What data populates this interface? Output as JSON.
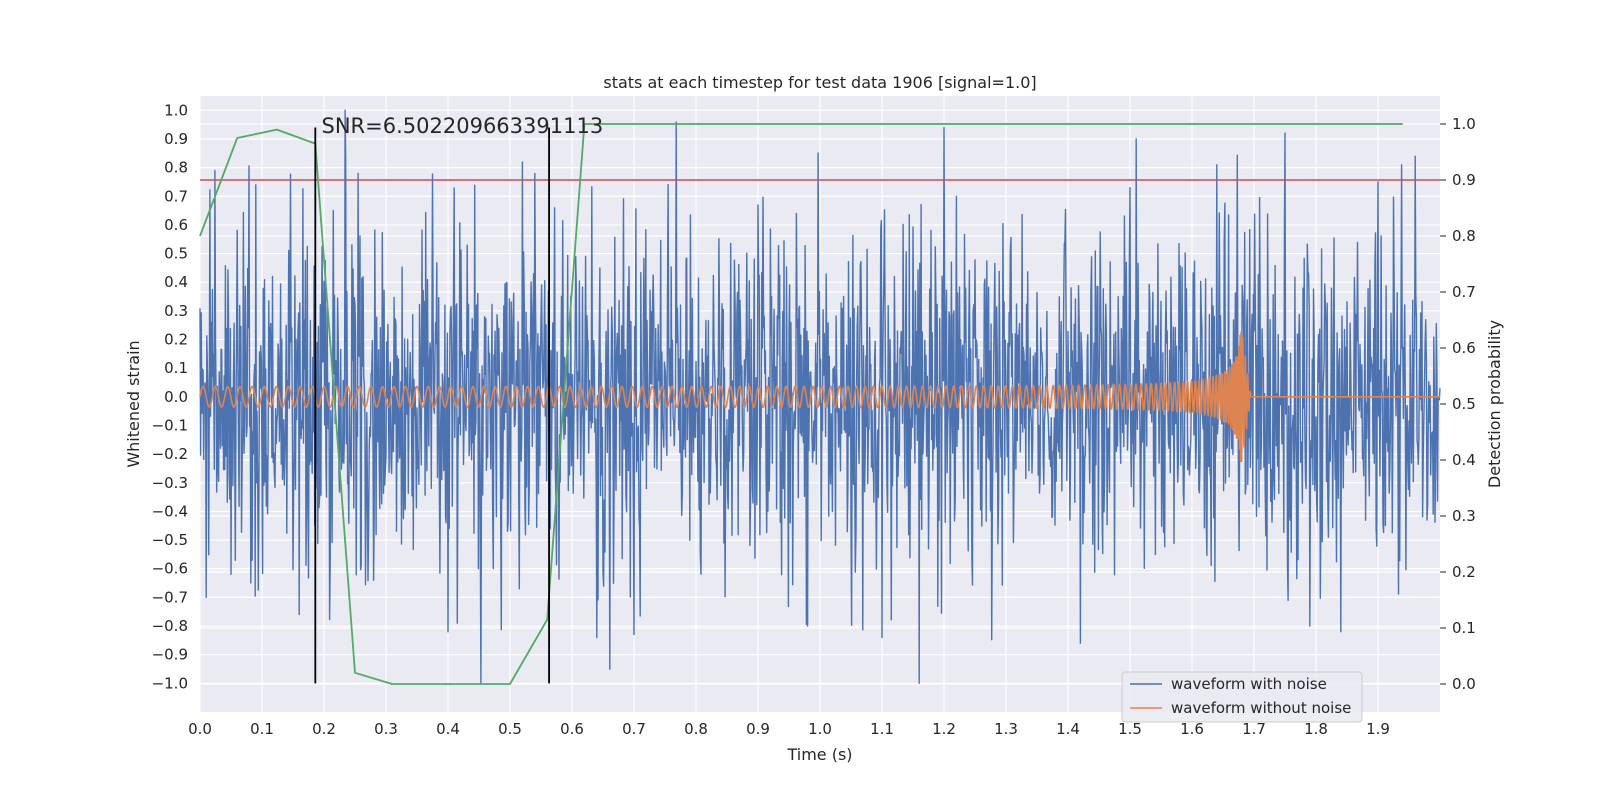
{
  "chart_data": {
    "type": "line",
    "title": "stats at each timestep for test data 1906 [signal=1.0]",
    "xlabel": "Time (s)",
    "ylabel": "Whitened strain",
    "y2label": "Detection probability",
    "xlim": [
      0.0,
      2.0
    ],
    "ylim": [
      -1.1,
      1.05
    ],
    "y2lim": [
      -0.05,
      1.05
    ],
    "x_ticks": [
      0.0,
      0.1,
      0.2,
      0.3,
      0.4,
      0.5,
      0.6,
      0.7,
      0.8,
      0.9,
      1.0,
      1.1,
      1.2,
      1.3,
      1.4,
      1.5,
      1.6,
      1.7,
      1.8,
      1.9
    ],
    "x_tick_labels": [
      "0.0",
      "0.1",
      "0.2",
      "0.3",
      "0.4",
      "0.5",
      "0.6",
      "0.7",
      "0.8",
      "0.9",
      "1.0",
      "1.1",
      "1.2",
      "1.3",
      "1.4",
      "1.5",
      "1.6",
      "1.7",
      "1.8",
      "1.9"
    ],
    "y_ticks": [
      1.0,
      0.9,
      0.8,
      0.7,
      0.6,
      0.5,
      0.4,
      0.3,
      0.2,
      0.1,
      0.0,
      -0.1,
      -0.2,
      -0.3,
      -0.4,
      -0.5,
      -0.6,
      -0.7,
      -0.8,
      -0.9,
      -1.0
    ],
    "y_tick_labels": [
      "1.0",
      "0.9",
      "0.8",
      "0.7",
      "0.6",
      "0.5",
      "0.4",
      "0.3",
      "0.2",
      "0.1",
      "0.0",
      "−0.1",
      "−0.2",
      "−0.3",
      "−0.4",
      "−0.5",
      "−0.6",
      "−0.7",
      "−0.8",
      "−0.9",
      "−1.0"
    ],
    "y2_ticks": [
      1.0,
      0.9,
      0.8,
      0.7,
      0.6,
      0.5,
      0.4,
      0.3,
      0.2,
      0.1,
      0.0
    ],
    "y2_tick_labels": [
      "1.0",
      "0.9",
      "0.8",
      "0.7",
      "0.6",
      "0.5",
      "0.4",
      "0.3",
      "0.2",
      "0.1",
      "0.0"
    ],
    "grid": true,
    "legend_position": "bottom-right",
    "series": [
      {
        "name": "waveform with noise",
        "color": "#4c72b0",
        "axis": "left",
        "noise": {
          "t_start": 0.0,
          "t_end": 2.0,
          "samples": 2000,
          "sigma": 0.3,
          "y_clip": [
            -1.0,
            1.0
          ]
        },
        "peaks": [
          {
            "x": 0.01,
            "y": -0.7
          },
          {
            "x": 0.024,
            "y": 0.79
          },
          {
            "x": 0.05,
            "y": -0.62
          },
          {
            "x": 0.09,
            "y": 0.74
          },
          {
            "x": 0.16,
            "y": -0.76
          },
          {
            "x": 0.21,
            "y": -0.58
          },
          {
            "x": 0.235,
            "y": 0.83
          },
          {
            "x": 0.255,
            "y": 0.78
          },
          {
            "x": 0.28,
            "y": -0.64
          },
          {
            "x": 0.4,
            "y": -0.82
          },
          {
            "x": 0.415,
            "y": -0.79
          },
          {
            "x": 0.52,
            "y": 0.82
          },
          {
            "x": 0.54,
            "y": 0.78
          },
          {
            "x": 0.64,
            "y": -0.84
          },
          {
            "x": 0.9,
            "y": 0.67
          },
          {
            "x": 0.98,
            "y": -0.8
          },
          {
            "x": 1.1,
            "y": -0.84
          },
          {
            "x": 1.16,
            "y": -1.0
          },
          {
            "x": 1.2,
            "y": 0.94
          },
          {
            "x": 1.22,
            "y": 0.7
          },
          {
            "x": 1.42,
            "y": -0.86
          },
          {
            "x": 1.5,
            "y": 0.73
          },
          {
            "x": 1.51,
            "y": 0.9
          },
          {
            "x": 1.64,
            "y": 0.81
          },
          {
            "x": 1.75,
            "y": 0.92
          },
          {
            "x": 1.79,
            "y": -0.8
          },
          {
            "x": 1.84,
            "y": -0.82
          },
          {
            "x": 1.9,
            "y": 0.75
          },
          {
            "x": 1.96,
            "y": 0.84
          }
        ]
      },
      {
        "name": "waveform without noise",
        "color": "#dd8452",
        "axis": "left",
        "chirp": {
          "t_start": 0.0,
          "t_merge": 1.68,
          "t_end": 2.0,
          "f_start": 50,
          "amplitude_start": 0.035,
          "amplitude_peak": 0.24,
          "offset": 0.0
        }
      },
      {
        "name": "",
        "color": "#55a868",
        "axis": "right",
        "x": [
          0.0,
          0.06,
          0.124,
          0.186,
          0.25,
          0.31,
          0.5,
          0.56,
          0.62,
          1.94
        ],
        "y": [
          0.8,
          0.975,
          0.99,
          0.965,
          0.02,
          0.0,
          0.0,
          0.115,
          1.0,
          1.0
        ]
      }
    ],
    "threshold": {
      "axis": "right",
      "y": 0.9,
      "color": "#c44e52"
    },
    "vlines": [
      {
        "x": 0.186,
        "y_from": -1.0,
        "y_to": 0.94,
        "color": "#000000"
      },
      {
        "x": 0.563,
        "y_from": -1.0,
        "y_to": 0.94,
        "color": "#000000"
      }
    ],
    "annotation": {
      "text": "SNR=6.502209663391113",
      "x": 0.196,
      "y": 0.945
    }
  }
}
